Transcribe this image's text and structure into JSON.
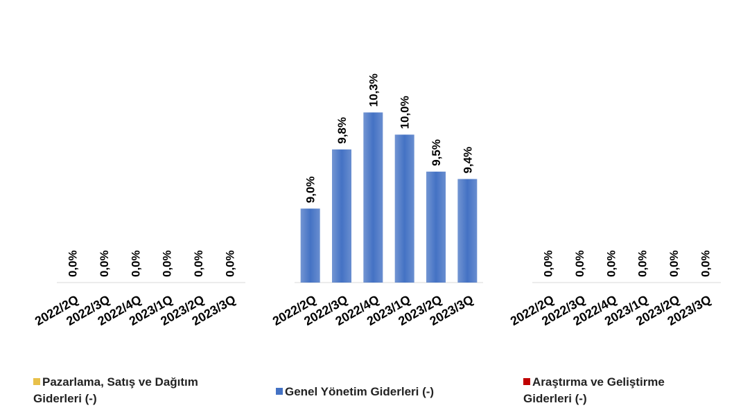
{
  "chart_data": [
    {
      "type": "bar",
      "categories": [
        "2022/2Q",
        "2022/3Q",
        "2022/4Q",
        "2023/1Q",
        "2023/2Q",
        "2023/3Q"
      ],
      "series": [
        {
          "name": "Pazarlama, Satış ve Dağıtım Giderleri (-)",
          "color": "#e8c04a",
          "values": [
            0,
            0,
            0,
            0,
            0,
            0
          ],
          "value_labels": [
            "0,0%",
            "0,0%",
            "0,0%",
            "0,0%",
            "0,0%",
            "0,0%"
          ]
        }
      ],
      "ylim": [
        0,
        1
      ]
    },
    {
      "type": "bar",
      "categories": [
        "2022/2Q",
        "2022/3Q",
        "2022/4Q",
        "2023/1Q",
        "2023/2Q",
        "2023/3Q"
      ],
      "series": [
        {
          "name": "Genel Yönetim Giderleri (-)",
          "color": "#4472c4",
          "values": [
            9.0,
            9.8,
            10.3,
            10.0,
            9.5,
            9.4
          ],
          "value_labels": [
            "9,0%",
            "9,8%",
            "10,3%",
            "10,0%",
            "9,5%",
            "9,4%"
          ]
        }
      ],
      "ylim": [
        8,
        10.5
      ]
    },
    {
      "type": "bar",
      "categories": [
        "2022/2Q",
        "2022/3Q",
        "2022/4Q",
        "2023/1Q",
        "2023/2Q",
        "2023/3Q"
      ],
      "series": [
        {
          "name": "Araştırma ve Geliştirme Giderleri (-)",
          "color": "#c00000",
          "values": [
            0,
            0,
            0,
            0,
            0,
            0
          ],
          "value_labels": [
            "0,0%",
            "0,0%",
            "0,0%",
            "0,0%",
            "0,0%",
            "0,0%"
          ]
        }
      ],
      "ylim": [
        0,
        1
      ]
    }
  ]
}
